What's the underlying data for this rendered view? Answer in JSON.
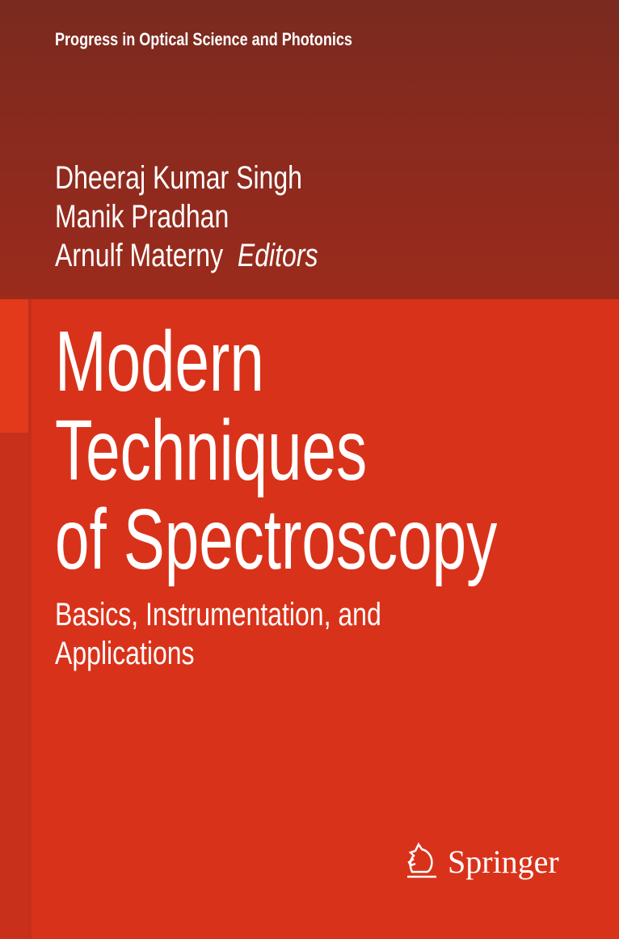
{
  "series": "Progress in Optical Science and Photonics",
  "authors": [
    "Dheeraj Kumar Singh",
    "Manik Pradhan",
    "Arnulf Materny"
  ],
  "editors_label": "Editors",
  "title_lines": [
    "Modern",
    "Techniques",
    "of Spectroscopy"
  ],
  "subtitle_lines": [
    "Basics, Instrumentation, and",
    "Applications"
  ],
  "publisher": {
    "name": "Springer",
    "icon": "springer-horse-icon"
  },
  "colors": {
    "top_band": "#8b2a1e",
    "main": "#d9321a"
  }
}
